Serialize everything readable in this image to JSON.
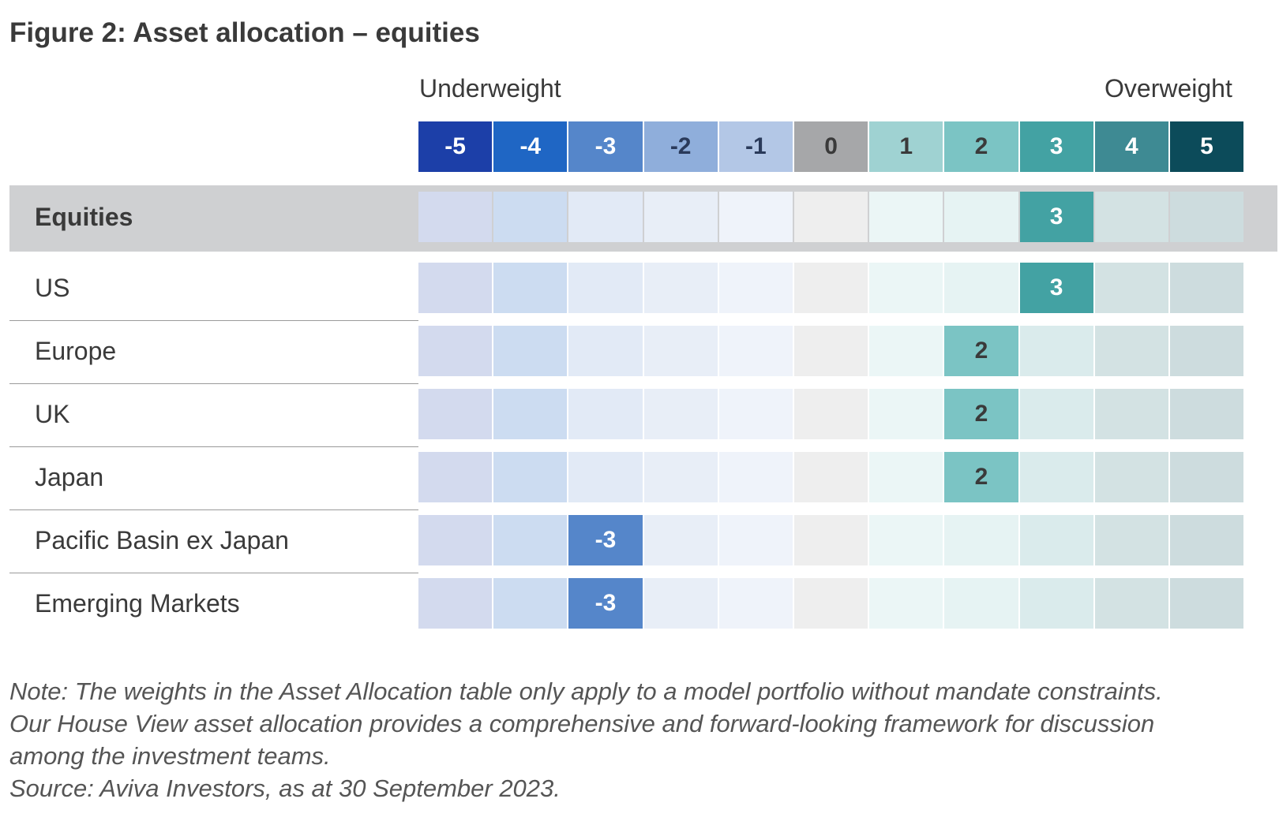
{
  "chart_data": {
    "type": "table",
    "title": "Figure 2: Asset allocation – equities",
    "scale_labels": {
      "left": "Underweight",
      "right": "Overweight"
    },
    "scale": [
      -5,
      -4,
      -3,
      -2,
      -1,
      0,
      1,
      2,
      3,
      4,
      5
    ],
    "scale_colors": [
      "#1c3fa8",
      "#1f66c4",
      "#5586ca",
      "#8faedb",
      "#b3c7e6",
      "#a6a7a9",
      "#9fd2d2",
      "#7bc4c4",
      "#43a2a3",
      "#3e8a93",
      "#0c4b5a"
    ],
    "track_colors": [
      "#d3daee",
      "#ccdcf1",
      "#e2eaf6",
      "#e8eef7",
      "#eff3fa",
      "#eeeeee",
      "#ebf6f6",
      "#e6f3f3",
      "#daebec",
      "#d3e2e3",
      "#cddcde"
    ],
    "rows": [
      {
        "label": "Equities",
        "value": 3,
        "group": true
      },
      {
        "label": "US",
        "value": 3
      },
      {
        "label": "Europe",
        "value": 2
      },
      {
        "label": "UK",
        "value": 2
      },
      {
        "label": "Japan",
        "value": 2
      },
      {
        "label": "Pacific Basin ex Japan",
        "value": -3
      },
      {
        "label": "Emerging Markets",
        "value": -3
      }
    ]
  },
  "notes": [
    "Note: The weights in the Asset Allocation table only apply to a model portfolio without mandate constraints.",
    "Our House View asset allocation provides a comprehensive and forward-looking framework for discussion",
    "among the investment teams.",
    "Source: Aviva Investors, as at 30 September 2023."
  ]
}
